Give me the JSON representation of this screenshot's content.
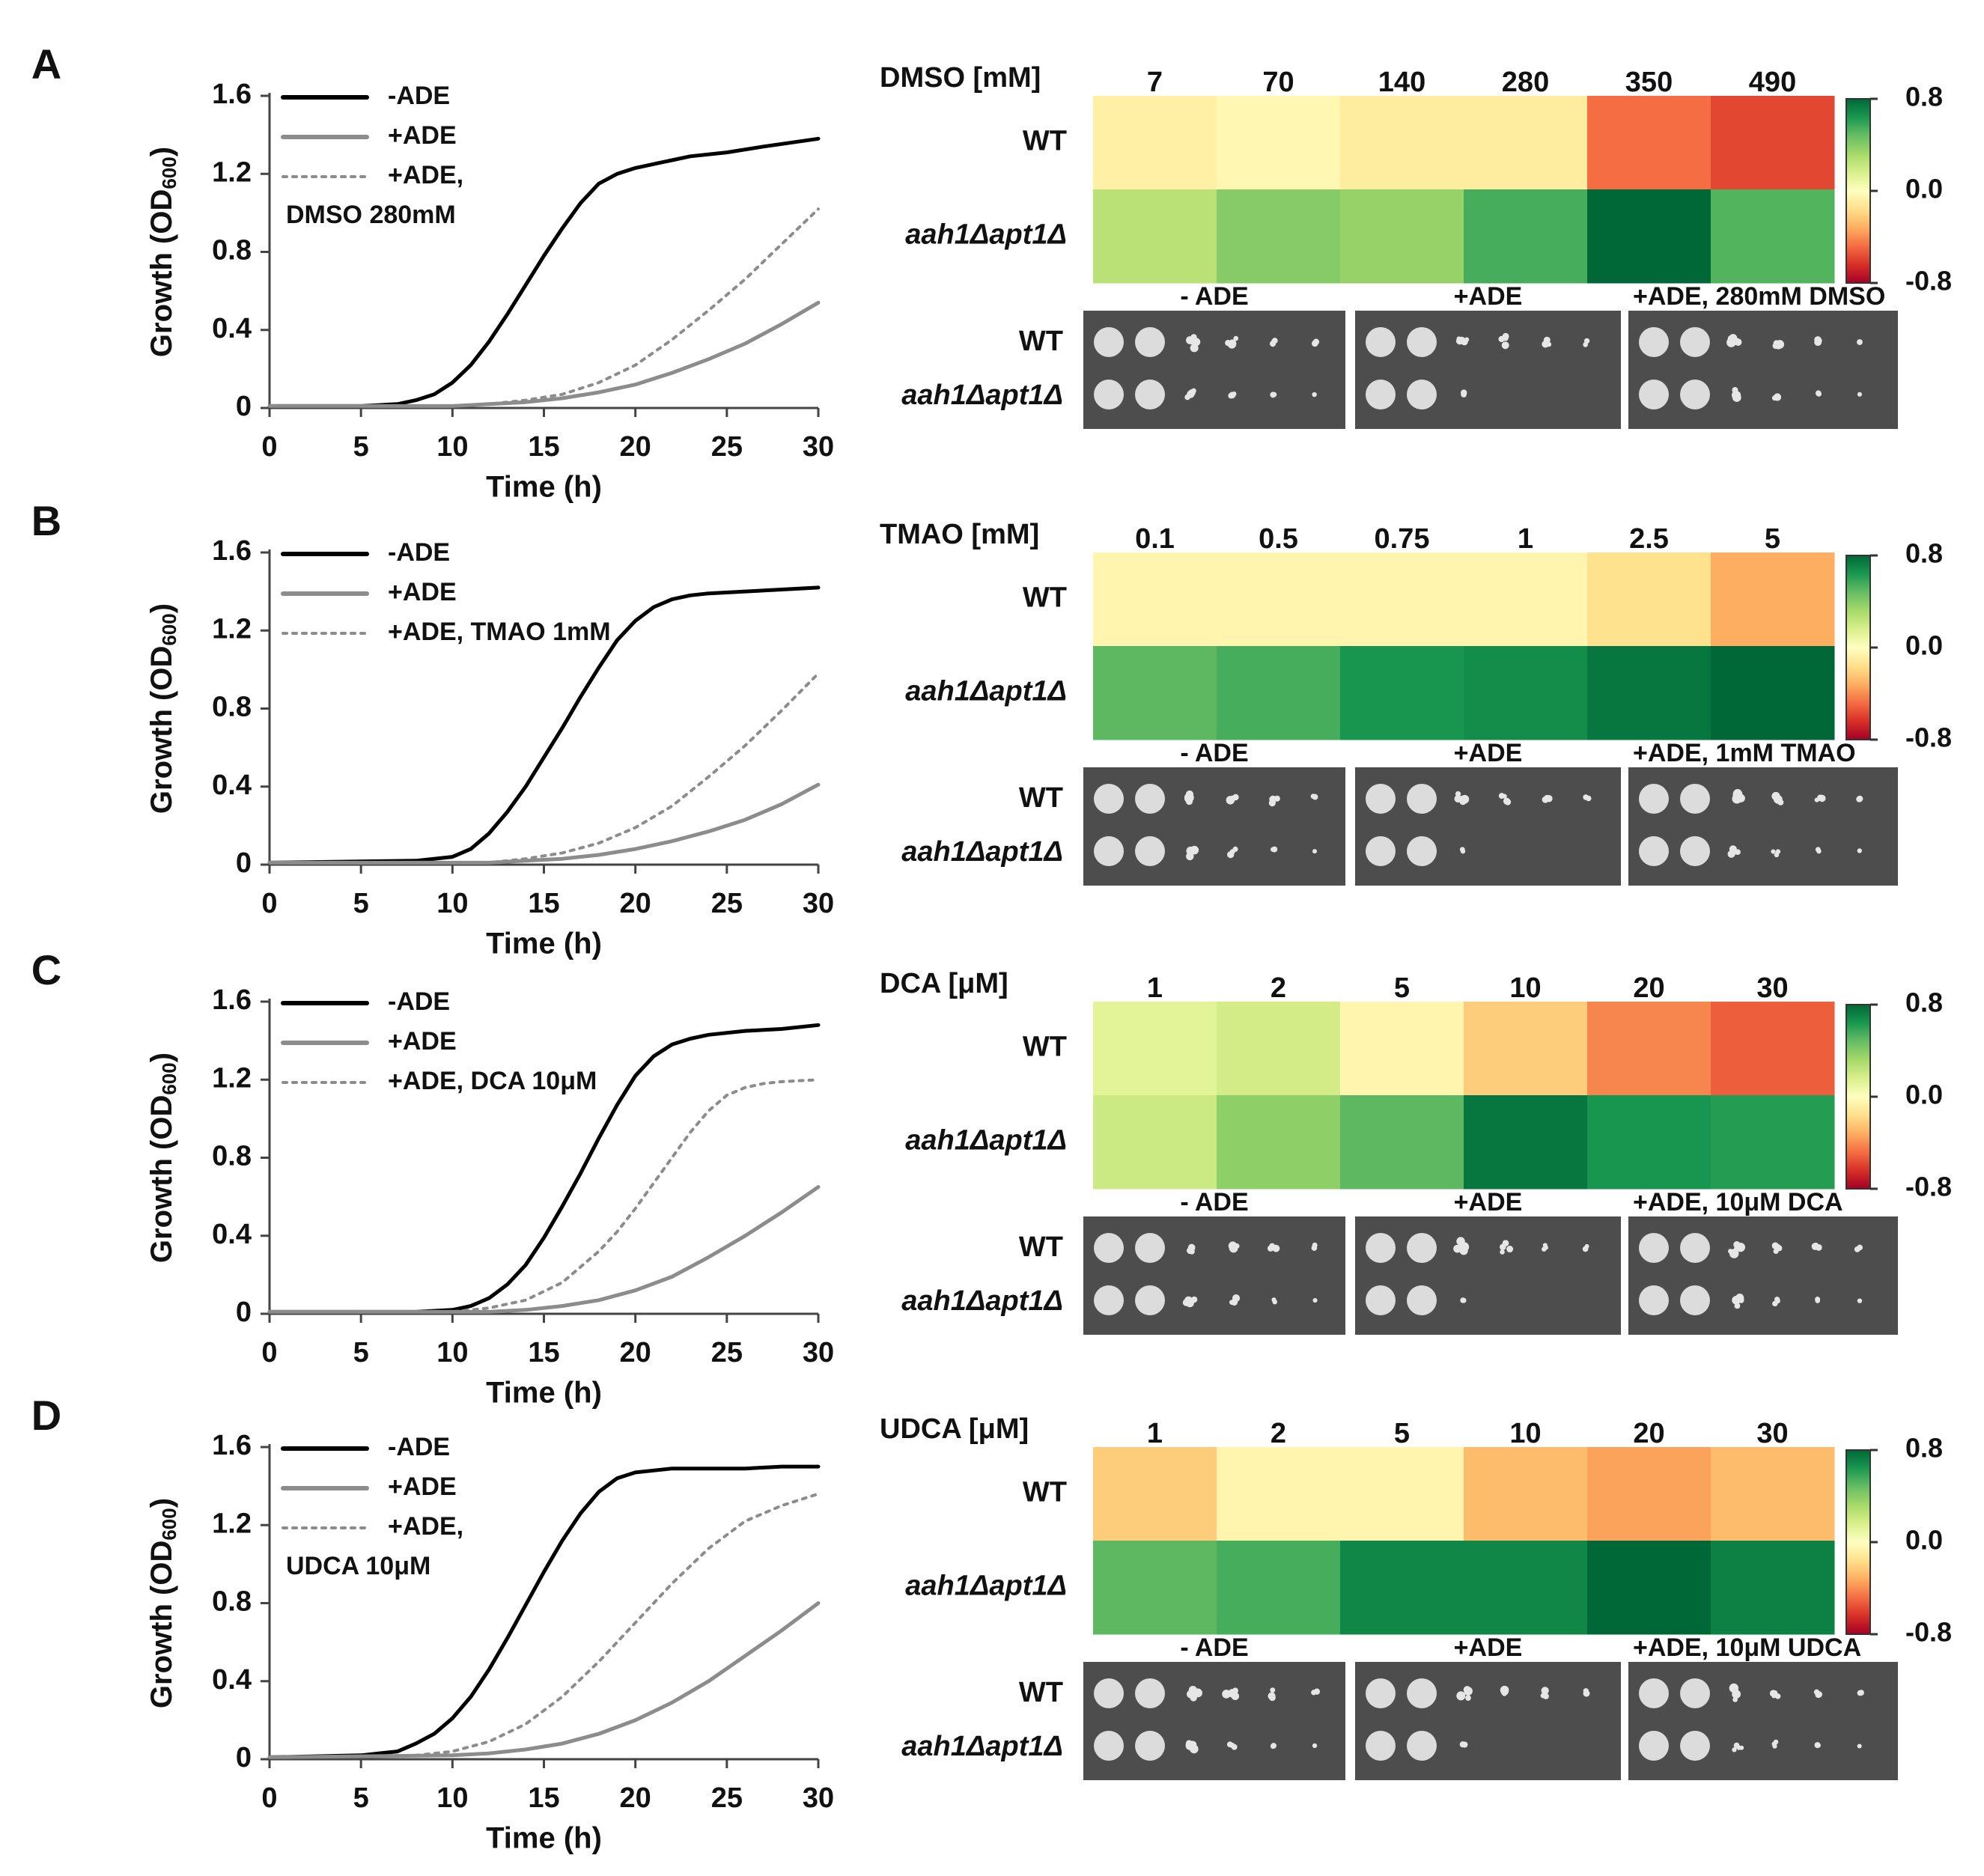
{
  "figure": {
    "colorbar": {
      "ticks": [
        "0.8",
        "0.0",
        "-0.8"
      ],
      "stops": [
        "#006837",
        "#1a9850",
        "#66bd63",
        "#a6d96a",
        "#d9ef8b",
        "#ffffbf",
        "#fee08b",
        "#fdae61",
        "#f46d43",
        "#d73027",
        "#a50026"
      ]
    },
    "colors": {
      "minus_ade": "#000000",
      "plus_ade": "#8c8c8c",
      "plus_ade_compound": "#8c8c8c"
    }
  },
  "chart_data": [
    {
      "panel_letter": "A",
      "type": "line",
      "xlabel": "Time (h)",
      "ylabel_main": "Growth (OD",
      "ylabel_sub": "600",
      "ylabel_end": ")",
      "xlim": [
        0,
        30
      ],
      "ylim": [
        0,
        1.6
      ],
      "xticks": [
        "0",
        "5",
        "10",
        "15",
        "20",
        "25",
        "30"
      ],
      "yticks": [
        "0",
        "0.4",
        "0.8",
        "1.2",
        "1.6"
      ],
      "legend": [
        "-ADE",
        "+ADE",
        "+ADE,",
        "DMSO 280mM"
      ],
      "series": [
        {
          "name": "-ADE",
          "style": "solid-black",
          "x": [
            0,
            5,
            7,
            8,
            9,
            10,
            11,
            12,
            13,
            14,
            15,
            16,
            17,
            18,
            19,
            20,
            21,
            22,
            23,
            25,
            27,
            30
          ],
          "y": [
            0.01,
            0.01,
            0.02,
            0.04,
            0.07,
            0.13,
            0.22,
            0.34,
            0.48,
            0.63,
            0.78,
            0.92,
            1.05,
            1.15,
            1.2,
            1.23,
            1.25,
            1.27,
            1.29,
            1.31,
            1.34,
            1.38
          ]
        },
        {
          "name": "+ADE",
          "style": "solid-gray",
          "x": [
            0,
            10,
            12,
            14,
            16,
            18,
            20,
            22,
            24,
            26,
            28,
            30
          ],
          "y": [
            0.01,
            0.01,
            0.02,
            0.03,
            0.05,
            0.08,
            0.12,
            0.18,
            0.25,
            0.33,
            0.43,
            0.54
          ]
        },
        {
          "name": "+ADE, DMSO 280mM",
          "style": "dotted-gray",
          "x": [
            0,
            10,
            12,
            14,
            16,
            18,
            20,
            22,
            24,
            26,
            28,
            30
          ],
          "y": [
            0.01,
            0.01,
            0.02,
            0.04,
            0.07,
            0.13,
            0.22,
            0.35,
            0.5,
            0.66,
            0.84,
            1.02
          ]
        }
      ],
      "heatmap": {
        "compound_label": "DMSO [mM]",
        "concentrations": [
          "7",
          "70",
          "140",
          "280",
          "350",
          "490"
        ],
        "rows": [
          "WT",
          "aah1Δapt1Δ"
        ],
        "values": [
          [
            -0.08,
            -0.04,
            -0.1,
            -0.1,
            -0.48,
            -0.58
          ],
          [
            0.26,
            0.4,
            0.36,
            0.55,
            0.82,
            0.52
          ]
        ]
      },
      "spots": {
        "labels": [
          "- ADE",
          "+ADE",
          "+ADE, 280mM  DMSO"
        ],
        "rows": [
          "WT",
          "aah1Δapt1Δ"
        ]
      }
    },
    {
      "panel_letter": "B",
      "type": "line",
      "xlabel": "Time (h)",
      "ylabel_main": "Growth (OD",
      "ylabel_sub": "600",
      "ylabel_end": ")",
      "xlim": [
        0,
        30
      ],
      "ylim": [
        0,
        1.6
      ],
      "xticks": [
        "0",
        "5",
        "10",
        "15",
        "20",
        "25",
        "30"
      ],
      "yticks": [
        "0",
        "0.4",
        "0.8",
        "1.2",
        "1.6"
      ],
      "legend": [
        "-ADE",
        "+ADE",
        "+ADE, TMAO 1mM"
      ],
      "series": [
        {
          "name": "-ADE",
          "style": "solid-black",
          "x": [
            0,
            8,
            10,
            11,
            12,
            13,
            14,
            15,
            16,
            17,
            18,
            19,
            20,
            21,
            22,
            23,
            24,
            26,
            28,
            30
          ],
          "y": [
            0.01,
            0.02,
            0.04,
            0.08,
            0.16,
            0.27,
            0.4,
            0.55,
            0.7,
            0.86,
            1.01,
            1.15,
            1.25,
            1.32,
            1.36,
            1.38,
            1.39,
            1.4,
            1.41,
            1.42
          ]
        },
        {
          "name": "+ADE",
          "style": "solid-gray",
          "x": [
            0,
            12,
            14,
            16,
            18,
            20,
            22,
            24,
            26,
            28,
            30
          ],
          "y": [
            0.01,
            0.01,
            0.02,
            0.03,
            0.05,
            0.08,
            0.12,
            0.17,
            0.23,
            0.31,
            0.41
          ]
        },
        {
          "name": "+ADE, TMAO 1mM",
          "style": "dotted-gray",
          "x": [
            0,
            12,
            14,
            16,
            18,
            20,
            22,
            24,
            26,
            28,
            30
          ],
          "y": [
            0.01,
            0.01,
            0.03,
            0.06,
            0.11,
            0.19,
            0.3,
            0.45,
            0.61,
            0.79,
            0.98
          ]
        }
      ],
      "heatmap": {
        "compound_label": "TMAO [mM]",
        "concentrations": [
          "0.1",
          "0.5",
          "0.75",
          "1",
          "2.5",
          "5"
        ],
        "rows": [
          "WT",
          "aah1Δapt1Δ"
        ],
        "values": [
          [
            -0.05,
            -0.05,
            -0.05,
            -0.05,
            -0.15,
            -0.32
          ],
          [
            0.5,
            0.55,
            0.65,
            0.68,
            0.75,
            0.8
          ]
        ]
      },
      "spots": {
        "labels": [
          "- ADE",
          "+ADE",
          "+ADE, 1mM TMAO"
        ],
        "rows": [
          "WT",
          "aah1Δapt1Δ"
        ]
      }
    },
    {
      "panel_letter": "C",
      "type": "line",
      "xlabel": "Time (h)",
      "ylabel_main": "Growth (OD",
      "ylabel_sub": "600",
      "ylabel_end": ")",
      "xlim": [
        0,
        30
      ],
      "ylim": [
        0,
        1.6
      ],
      "xticks": [
        "0",
        "5",
        "10",
        "15",
        "20",
        "25",
        "30"
      ],
      "yticks": [
        "0",
        "0.4",
        "0.8",
        "1.2",
        "1.6"
      ],
      "legend": [
        "-ADE",
        "+ADE",
        "+ADE, DCA 10μM"
      ],
      "series": [
        {
          "name": "-ADE",
          "style": "solid-black",
          "x": [
            0,
            8,
            10,
            11,
            12,
            13,
            14,
            15,
            16,
            17,
            18,
            19,
            20,
            21,
            22,
            23,
            24,
            26,
            28,
            30
          ],
          "y": [
            0.01,
            0.01,
            0.02,
            0.04,
            0.08,
            0.15,
            0.25,
            0.39,
            0.55,
            0.72,
            0.9,
            1.07,
            1.22,
            1.32,
            1.38,
            1.41,
            1.43,
            1.45,
            1.46,
            1.48
          ]
        },
        {
          "name": "+ADE",
          "style": "solid-gray",
          "x": [
            0,
            12,
            14,
            16,
            18,
            20,
            22,
            24,
            26,
            28,
            30
          ],
          "y": [
            0.01,
            0.01,
            0.02,
            0.04,
            0.07,
            0.12,
            0.19,
            0.29,
            0.4,
            0.52,
            0.65
          ]
        },
        {
          "name": "+ADE, DCA 10μM",
          "style": "dotted-gray",
          "x": [
            0,
            10,
            12,
            14,
            16,
            18,
            19,
            20,
            21,
            22,
            23,
            24,
            25,
            26,
            27,
            28,
            30
          ],
          "y": [
            0.01,
            0.01,
            0.03,
            0.07,
            0.16,
            0.32,
            0.42,
            0.54,
            0.67,
            0.8,
            0.93,
            1.04,
            1.12,
            1.16,
            1.18,
            1.19,
            1.2
          ]
        }
      ],
      "heatmap": {
        "compound_label": "DCA [μM]",
        "concentrations": [
          "1",
          "2",
          "5",
          "10",
          "20",
          "30"
        ],
        "rows": [
          "WT",
          "aah1Δapt1Δ"
        ],
        "values": [
          [
            0.12,
            0.18,
            -0.05,
            -0.22,
            -0.42,
            -0.52
          ],
          [
            0.2,
            0.38,
            0.5,
            0.75,
            0.65,
            0.62
          ]
        ]
      },
      "spots": {
        "labels": [
          "- ADE",
          "+ADE",
          "+ADE, 10μM DCA"
        ],
        "rows": [
          "WT",
          "aah1Δapt1Δ"
        ]
      }
    },
    {
      "panel_letter": "D",
      "type": "line",
      "xlabel": "Time (h)",
      "ylabel_main": "Growth (OD",
      "ylabel_sub": "600",
      "ylabel_end": ")",
      "xlim": [
        0,
        30
      ],
      "ylim": [
        0,
        1.6
      ],
      "xticks": [
        "0",
        "5",
        "10",
        "15",
        "20",
        "25",
        "30"
      ],
      "yticks": [
        "0",
        "0.4",
        "0.8",
        "1.2",
        "1.6"
      ],
      "legend": [
        "-ADE",
        "+ADE",
        "+ADE,",
        "UDCA 10μM"
      ],
      "series": [
        {
          "name": "-ADE",
          "style": "solid-black",
          "x": [
            0,
            5,
            7,
            8,
            9,
            10,
            11,
            12,
            13,
            14,
            15,
            16,
            17,
            18,
            19,
            20,
            21,
            22,
            24,
            26,
            28,
            30
          ],
          "y": [
            0.01,
            0.02,
            0.04,
            0.08,
            0.13,
            0.21,
            0.32,
            0.46,
            0.62,
            0.79,
            0.96,
            1.12,
            1.26,
            1.37,
            1.44,
            1.47,
            1.48,
            1.49,
            1.49,
            1.49,
            1.5,
            1.5
          ]
        },
        {
          "name": "+ADE",
          "style": "solid-gray",
          "x": [
            0,
            10,
            12,
            14,
            16,
            18,
            20,
            22,
            24,
            26,
            28,
            30
          ],
          "y": [
            0.01,
            0.02,
            0.03,
            0.05,
            0.08,
            0.13,
            0.2,
            0.29,
            0.4,
            0.53,
            0.66,
            0.8
          ]
        },
        {
          "name": "+ADE, UDCA 10μM",
          "style": "dotted-gray",
          "x": [
            0,
            8,
            10,
            12,
            14,
            16,
            18,
            20,
            22,
            24,
            26,
            28,
            30
          ],
          "y": [
            0.01,
            0.02,
            0.04,
            0.09,
            0.18,
            0.32,
            0.5,
            0.7,
            0.9,
            1.08,
            1.22,
            1.3,
            1.36
          ]
        }
      ],
      "heatmap": {
        "compound_label": "UDCA [μM]",
        "concentrations": [
          "1",
          "2",
          "5",
          "10",
          "20",
          "30"
        ],
        "rows": [
          "WT",
          "aah1Δapt1Δ"
        ],
        "values": [
          [
            -0.22,
            -0.05,
            -0.05,
            -0.28,
            -0.35,
            -0.28
          ],
          [
            0.5,
            0.55,
            0.7,
            0.7,
            0.9,
            0.72
          ]
        ]
      },
      "spots": {
        "labels": [
          "- ADE",
          "+ADE",
          "+ADE, 10μM UDCA"
        ],
        "rows": [
          "WT",
          "aah1Δapt1Δ"
        ]
      }
    }
  ]
}
